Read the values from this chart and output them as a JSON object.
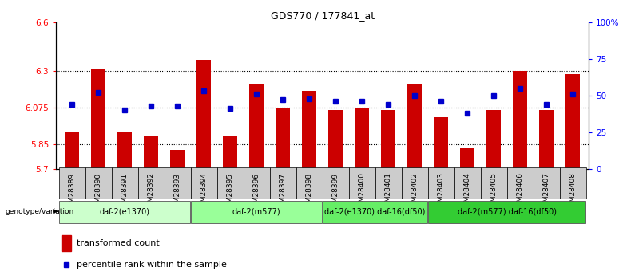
{
  "title": "GDS770 / 177841_at",
  "samples": [
    "GSM28389",
    "GSM28390",
    "GSM28391",
    "GSM28392",
    "GSM28393",
    "GSM28394",
    "GSM28395",
    "GSM28396",
    "GSM28397",
    "GSM28398",
    "GSM28399",
    "GSM28400",
    "GSM28401",
    "GSM28402",
    "GSM28403",
    "GSM28404",
    "GSM28405",
    "GSM28406",
    "GSM28407",
    "GSM28408"
  ],
  "transformed_count": [
    5.93,
    6.31,
    5.93,
    5.9,
    5.82,
    6.37,
    5.9,
    6.22,
    6.07,
    6.18,
    6.06,
    6.07,
    6.06,
    6.22,
    6.02,
    5.83,
    6.06,
    6.3,
    6.06,
    6.28
  ],
  "percentile_rank": [
    44,
    52,
    40,
    43,
    43,
    53,
    41,
    51,
    47,
    48,
    46,
    46,
    44,
    50,
    46,
    38,
    50,
    55,
    44,
    51
  ],
  "ylim_left": [
    5.7,
    6.6
  ],
  "ylim_right": [
    0,
    100
  ],
  "yticks_left": [
    5.7,
    5.85,
    6.075,
    6.3,
    6.6
  ],
  "yticks_right": [
    0,
    25,
    50,
    75,
    100
  ],
  "ytick_labels_left": [
    "5.7",
    "5.85",
    "6.075",
    "6.3",
    "6.6"
  ],
  "ytick_labels_right": [
    "0",
    "25",
    "50",
    "75",
    "100%"
  ],
  "hlines": [
    5.85,
    6.075,
    6.3
  ],
  "bar_color": "#cc0000",
  "dot_color": "#0000cc",
  "groups": [
    {
      "label": "daf-2(e1370)",
      "start": 0,
      "end": 4,
      "color": "#ccffcc"
    },
    {
      "label": "daf-2(m577)",
      "start": 5,
      "end": 9,
      "color": "#99ff99"
    },
    {
      "label": "daf-2(e1370) daf-16(df50)",
      "start": 10,
      "end": 13,
      "color": "#66ee66"
    },
    {
      "label": "daf-2(m577) daf-16(df50)",
      "start": 14,
      "end": 19,
      "color": "#33cc33"
    }
  ],
  "legend_bar_label": "transformed count",
  "legend_dot_label": "percentile rank within the sample",
  "genotype_label": "genotype/variation",
  "bg_color": "#ffffff",
  "tick_bg": "#cccccc"
}
